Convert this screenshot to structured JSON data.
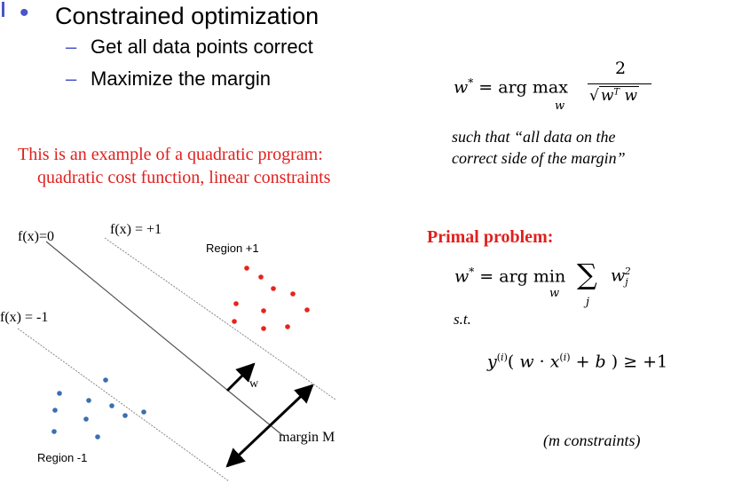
{
  "bullet": {
    "heading": "Constrained optimization",
    "items": [
      "Get all data points correct",
      "Maximize the margin"
    ]
  },
  "note": {
    "line1": "This is an example of a quadratic program:",
    "line2": "quadratic cost function, linear constraints"
  },
  "figure": {
    "labels": {
      "f0": "f(x)=0",
      "fplus": "f(x) = +1",
      "fminus": "f(x) = -1",
      "region_plus": "Region +1",
      "region_minus": "Region -1",
      "w": "w",
      "margin": "margin M"
    },
    "colors": {
      "positive": "#e8231c",
      "negative": "#3b6fb0"
    }
  },
  "objective": {
    "lhs": "w* = arg max",
    "sub": "w",
    "numerator": "2",
    "denominator": "wᵀw",
    "constraint_line1": "such that “all data on the",
    "constraint_line2": "correct side of the margin”"
  },
  "primal": {
    "title": "Primal problem:",
    "objective_lhs": "w* = arg min",
    "objective_sub": "w",
    "sum_sub": "j",
    "term": "w",
    "st": "s.t.",
    "constraint": "y(i)( w · x(i) + b ) ≥ +1",
    "count": "(m constraints)"
  }
}
